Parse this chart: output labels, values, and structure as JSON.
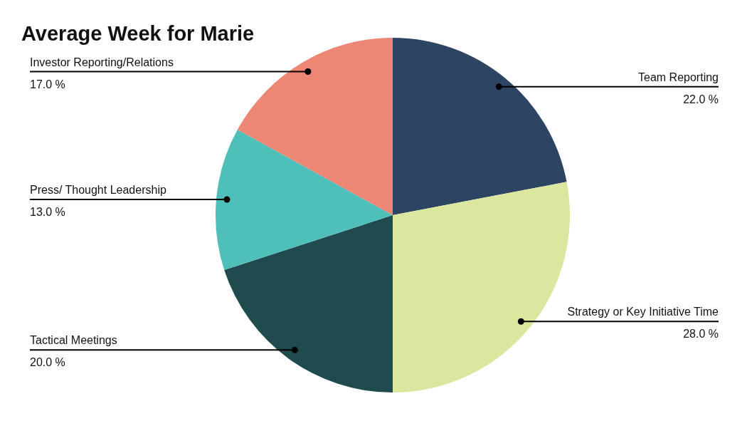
{
  "chart_data": {
    "type": "pie",
    "title": "Average Week for Marie",
    "categories": [
      "Team Reporting",
      "Strategy or Key Initiative Time",
      "Tactical Meetings",
      "Press/ Thought Leadership",
      "Investor Reporting/Relations"
    ],
    "values": [
      22,
      28,
      20,
      13,
      17
    ],
    "colors": [
      "#2d4563",
      "#dbe79f",
      "#1f4a4e",
      "#4fc0b9",
      "#ee8675"
    ],
    "value_labels": [
      "22.0 %",
      "28.0 %",
      "20.0 %",
      "13.0 %",
      "17.0 %"
    ]
  }
}
